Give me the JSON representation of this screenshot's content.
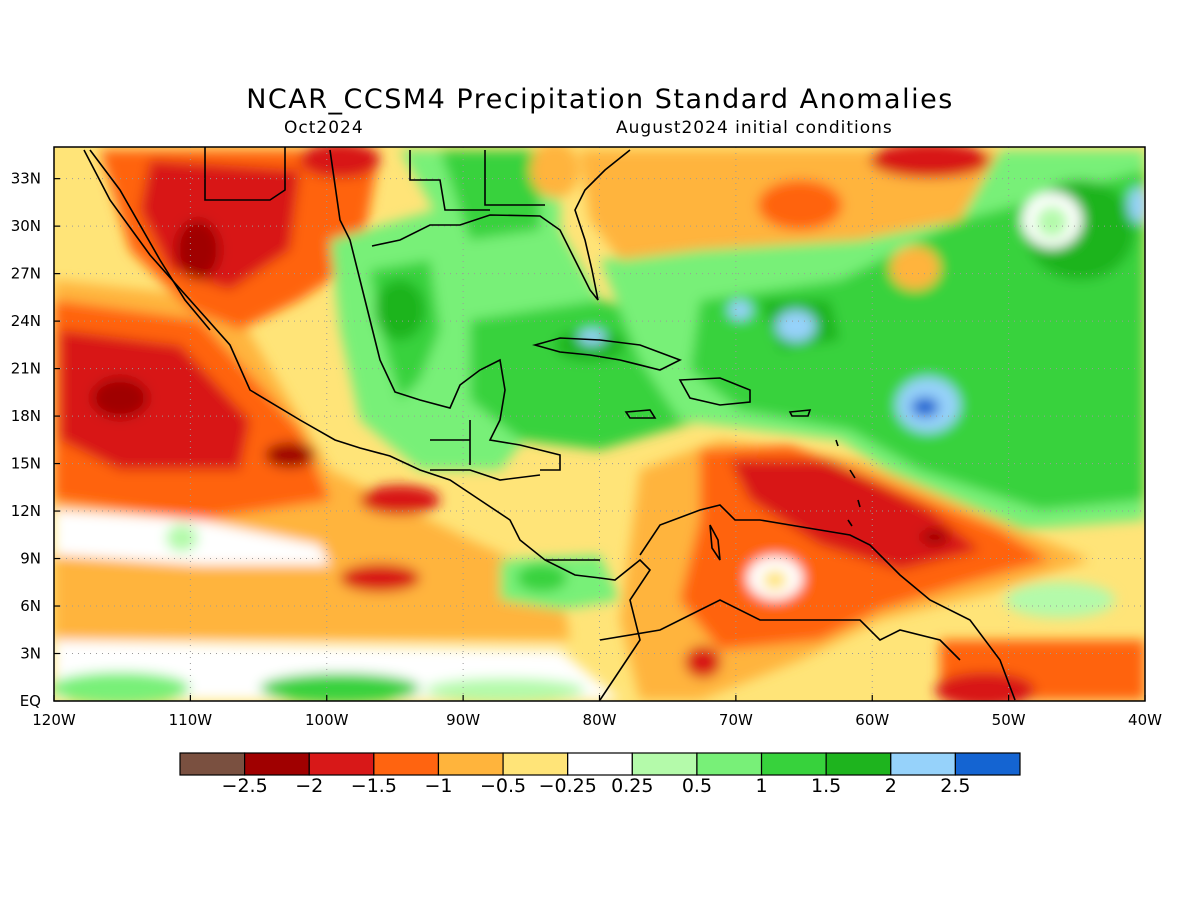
{
  "title": "NCAR_CCSM4 Precipitation Standard Anomalies",
  "subtitle_left": "Oct2024",
  "subtitle_right": "August2024 initial conditions",
  "map": {
    "lon_range": [
      -120,
      -40
    ],
    "lat_range": [
      0,
      35
    ],
    "x_ticks": [
      "120W",
      "110W",
      "100W",
      "90W",
      "80W",
      "70W",
      "60W",
      "50W",
      "40W"
    ],
    "y_ticks": [
      "EQ",
      "3N",
      "6N",
      "9N",
      "12N",
      "15N",
      "18N",
      "21N",
      "24N",
      "27N",
      "30N",
      "33N"
    ],
    "grid": "dotted",
    "variable": "precipitation standard anomaly"
  },
  "colorbar": {
    "colors": [
      "#7a5040",
      "#a00000",
      "#d81818",
      "#ff6410",
      "#ffb43c",
      "#ffe478",
      "#ffffff",
      "#b4faaa",
      "#78f078",
      "#37d23c",
      "#1eb41e",
      "#96d2fa",
      "#1464d2"
    ],
    "labels": [
      "−2.5",
      "−2",
      "−1.5",
      "−1",
      "−0.5",
      "−0.25",
      "0.25",
      "0.5",
      "1",
      "1.5",
      "2",
      "2.5"
    ],
    "levels": [
      -2.5,
      -2,
      -1.5,
      -1,
      -0.5,
      -0.25,
      0.25,
      0.5,
      1,
      1.5,
      2,
      2.5
    ]
  }
}
